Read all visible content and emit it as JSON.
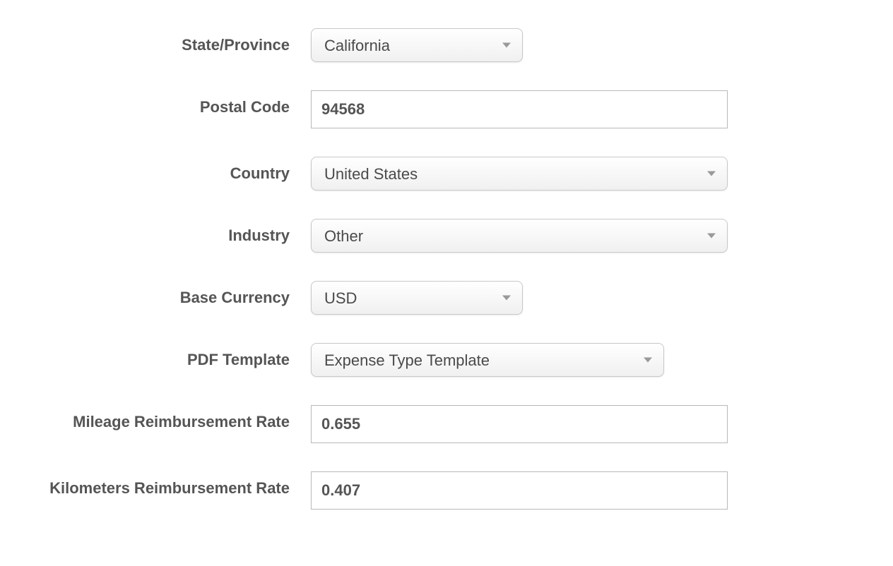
{
  "form": {
    "state_province": {
      "label": "State/Province",
      "value": "California"
    },
    "postal_code": {
      "label": "Postal Code",
      "value": "94568"
    },
    "country": {
      "label": "Country",
      "value": "United States"
    },
    "industry": {
      "label": "Industry",
      "value": "Other"
    },
    "base_currency": {
      "label": "Base Currency",
      "value": "USD"
    },
    "pdf_template": {
      "label": "PDF Template",
      "value": "Expense Type Template"
    },
    "mileage_rate": {
      "label": "Mileage Reimbursement Rate",
      "value": "0.655"
    },
    "kilometers_rate": {
      "label": "Kilometers Reimbursement Rate",
      "value": "0.407"
    }
  },
  "style": {
    "label_color": "#555555",
    "text_color": "#4a4a4a",
    "border_color": "#c8c8c8",
    "input_border_color": "#b8b8b8",
    "chevron_color": "#999999",
    "select_bg_top": "#ffffff",
    "select_bg_bottom": "#f0f0f0",
    "background": "#ffffff",
    "label_fontsize": 22,
    "label_fontweight": 700,
    "value_fontsize": 22,
    "select_radius": 8,
    "row_gap": 40,
    "label_width": 380,
    "widths": {
      "narrow": 300,
      "medium": 500,
      "wide_select": 590,
      "wide_input": 590
    }
  }
}
